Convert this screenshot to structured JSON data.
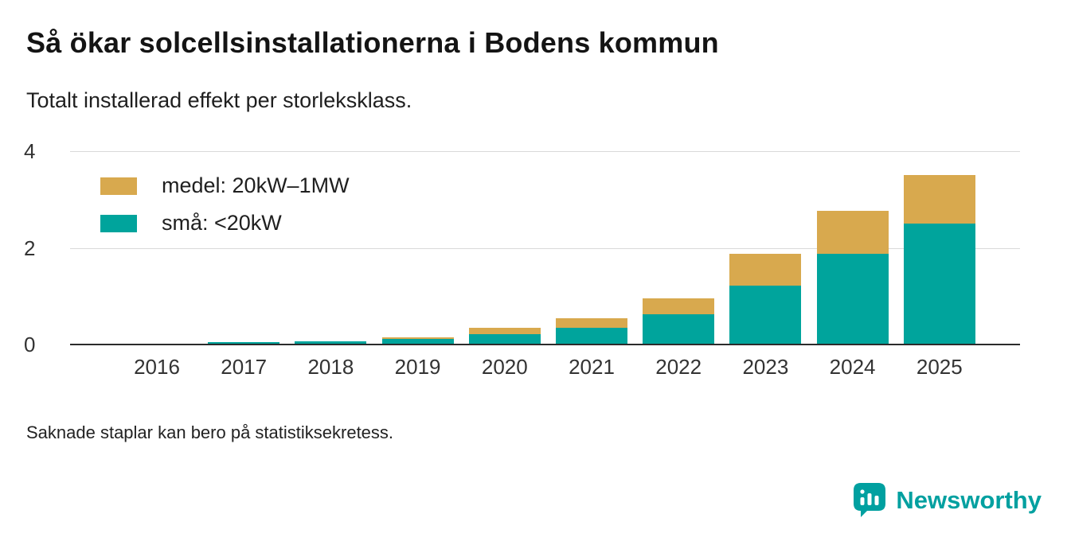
{
  "title": "Så ökar solcellsinstallationerna i Bodens kommun",
  "subtitle": "Totalt installerad effekt per storleksklass.",
  "footnote": "Saknade staplar kan bero på statistiksekretess.",
  "brand": {
    "name": "Newsworthy",
    "color": "#00A0A0"
  },
  "colors": {
    "teal": "#00A49C",
    "gold": "#D8A94E",
    "grid": "#D9D9D9",
    "axis": "#2B2B2B",
    "text": "#141414"
  },
  "chart_data": {
    "type": "bar",
    "stacked": true,
    "title": "Så ökar solcellsinstallationerna i Bodens kommun",
    "subtitle": "Totalt installerad effekt per storleksklass.",
    "categories": [
      "2016",
      "2017",
      "2018",
      "2019",
      "2020",
      "2021",
      "2022",
      "2023",
      "2024",
      "2025"
    ],
    "series": [
      {
        "name": "små: <20kW",
        "color_key": "teal",
        "values": [
          0,
          0.05,
          0.07,
          0.12,
          0.21,
          0.35,
          0.63,
          1.22,
          1.87,
          2.5
        ]
      },
      {
        "name": "medel: 20kW–1MW",
        "color_key": "gold",
        "values": [
          0,
          0,
          0,
          0.02,
          0.13,
          0.2,
          0.33,
          0.65,
          0.9,
          1.0
        ]
      }
    ],
    "legend": [
      {
        "label": "medel: 20kW–1MW",
        "color_key": "gold"
      },
      {
        "label": "små: <20kW",
        "color_key": "teal"
      }
    ],
    "yticks": [
      0,
      2,
      4
    ],
    "ylim": [
      0,
      4
    ],
    "grid": true,
    "legend_position": "top-left",
    "xlabel": "",
    "ylabel": ""
  }
}
